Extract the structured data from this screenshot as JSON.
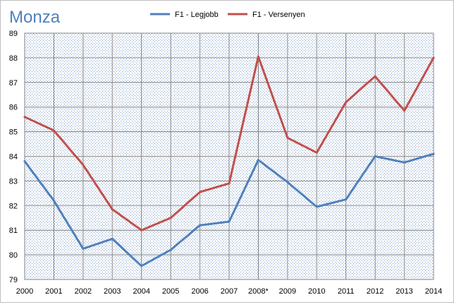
{
  "chart_data": {
    "type": "line",
    "title": "Monza",
    "xlabel": "",
    "ylabel": "",
    "categories": [
      "2000",
      "2001",
      "2002",
      "2003",
      "2004",
      "2005",
      "2006",
      "2007",
      "2008*",
      "2009",
      "2010",
      "2011",
      "2012",
      "2013",
      "2014"
    ],
    "ylim": [
      79,
      89
    ],
    "yticks": [
      "79",
      "80",
      "81",
      "82",
      "83",
      "84",
      "85",
      "86",
      "87",
      "88",
      "89"
    ],
    "grid": true,
    "legend_position": "top",
    "series": [
      {
        "name": "F1 - Legjobb",
        "color": "#4f81bd",
        "values": [
          83.8,
          82.2,
          80.25,
          80.65,
          79.55,
          80.2,
          81.2,
          81.35,
          83.85,
          82.95,
          81.95,
          82.25,
          84.0,
          83.75,
          84.1
        ]
      },
      {
        "name": "F1 - Versenyen",
        "color": "#c0504d",
        "values": [
          85.6,
          85.05,
          83.65,
          81.85,
          81.0,
          81.5,
          82.55,
          82.9,
          88.05,
          84.75,
          84.15,
          86.2,
          87.25,
          85.85,
          88.0
        ]
      }
    ]
  }
}
